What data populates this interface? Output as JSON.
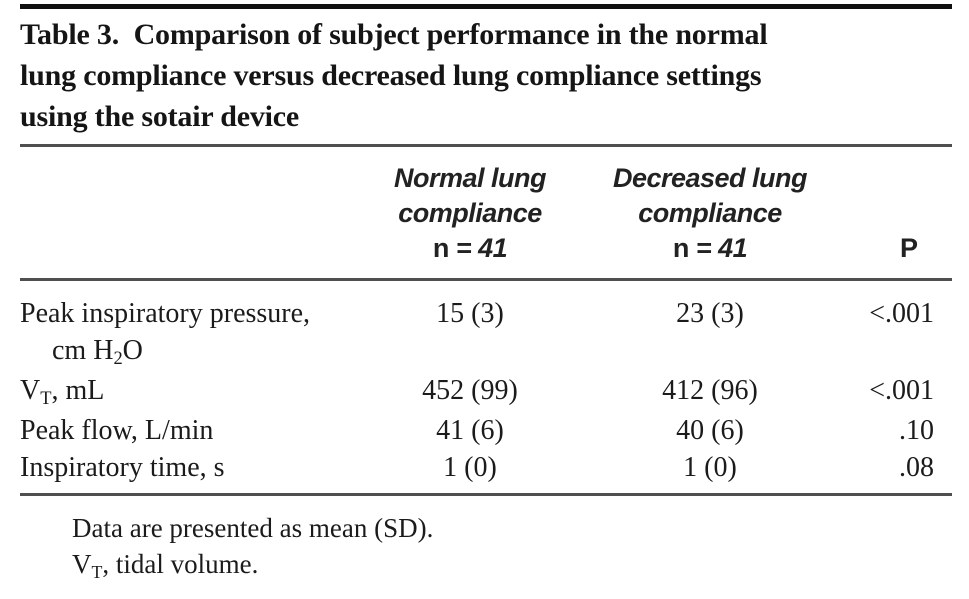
{
  "table": {
    "title": {
      "line1": "Table 3.  Comparison of subject performance in the normal",
      "line2": "lung compliance versus decreased lung compliance settings",
      "line3": "using the sotair device"
    },
    "columns": {
      "normal": {
        "name_line1": "Normal lung",
        "name_line2": "compliance",
        "n_prefix": "n",
        "n_rest": " = 41"
      },
      "decreased": {
        "name_line1": "Decreased lung",
        "name_line2": "compliance",
        "n_prefix": "n",
        "n_rest": " = 41"
      },
      "p_label": "P"
    },
    "rows": {
      "pip": {
        "label_line1": "Peak inspiratory pressure,",
        "label_line2_pre": "cm H",
        "label_line2_sub": "2",
        "label_line2_post": "O",
        "normal": "15 (3)",
        "decreased": "23 (3)",
        "p": "<.001"
      },
      "vt": {
        "label_pre": "V",
        "label_sub": "T",
        "label_post": ", mL",
        "normal": "452 (99)",
        "decreased": "412 (96)",
        "p": "<.001"
      },
      "peak_flow": {
        "label": "Peak flow, L/min",
        "normal": "41 (6)",
        "decreased": "40 (6)",
        "p": ".10"
      },
      "insp_time": {
        "label": "Inspiratory time, s",
        "normal": "1 (0)",
        "decreased": "1 (0)",
        "p": ".08"
      }
    },
    "footnotes": {
      "line1": "Data are presented as mean (SD).",
      "line2_pre": "V",
      "line2_sub": "T",
      "line2_post": ", tidal volume."
    }
  },
  "colors": {
    "rule": "#4f4f4f",
    "top_bar": "#101010",
    "text": "#1b1b1b"
  },
  "chart_data": {
    "type": "table",
    "title": "Table 3. Comparison of subject performance in the normal lung compliance versus decreased lung compliance settings using the sotair device",
    "columns": [
      "",
      "Normal lung compliance n = 41",
      "Decreased lung compliance n = 41",
      "P"
    ],
    "rows": [
      [
        "Peak inspiratory pressure, cm H2O",
        "15 (3)",
        "23 (3)",
        "<.001"
      ],
      [
        "VT, mL",
        "452 (99)",
        "412 (96)",
        "<.001"
      ],
      [
        "Peak flow, L/min",
        "41 (6)",
        "40 (6)",
        ".10"
      ],
      [
        "Inspiratory time, s",
        "1 (0)",
        "1 (0)",
        ".08"
      ]
    ],
    "footnotes": [
      "Data are presented as mean (SD).",
      "VT, tidal volume."
    ]
  }
}
